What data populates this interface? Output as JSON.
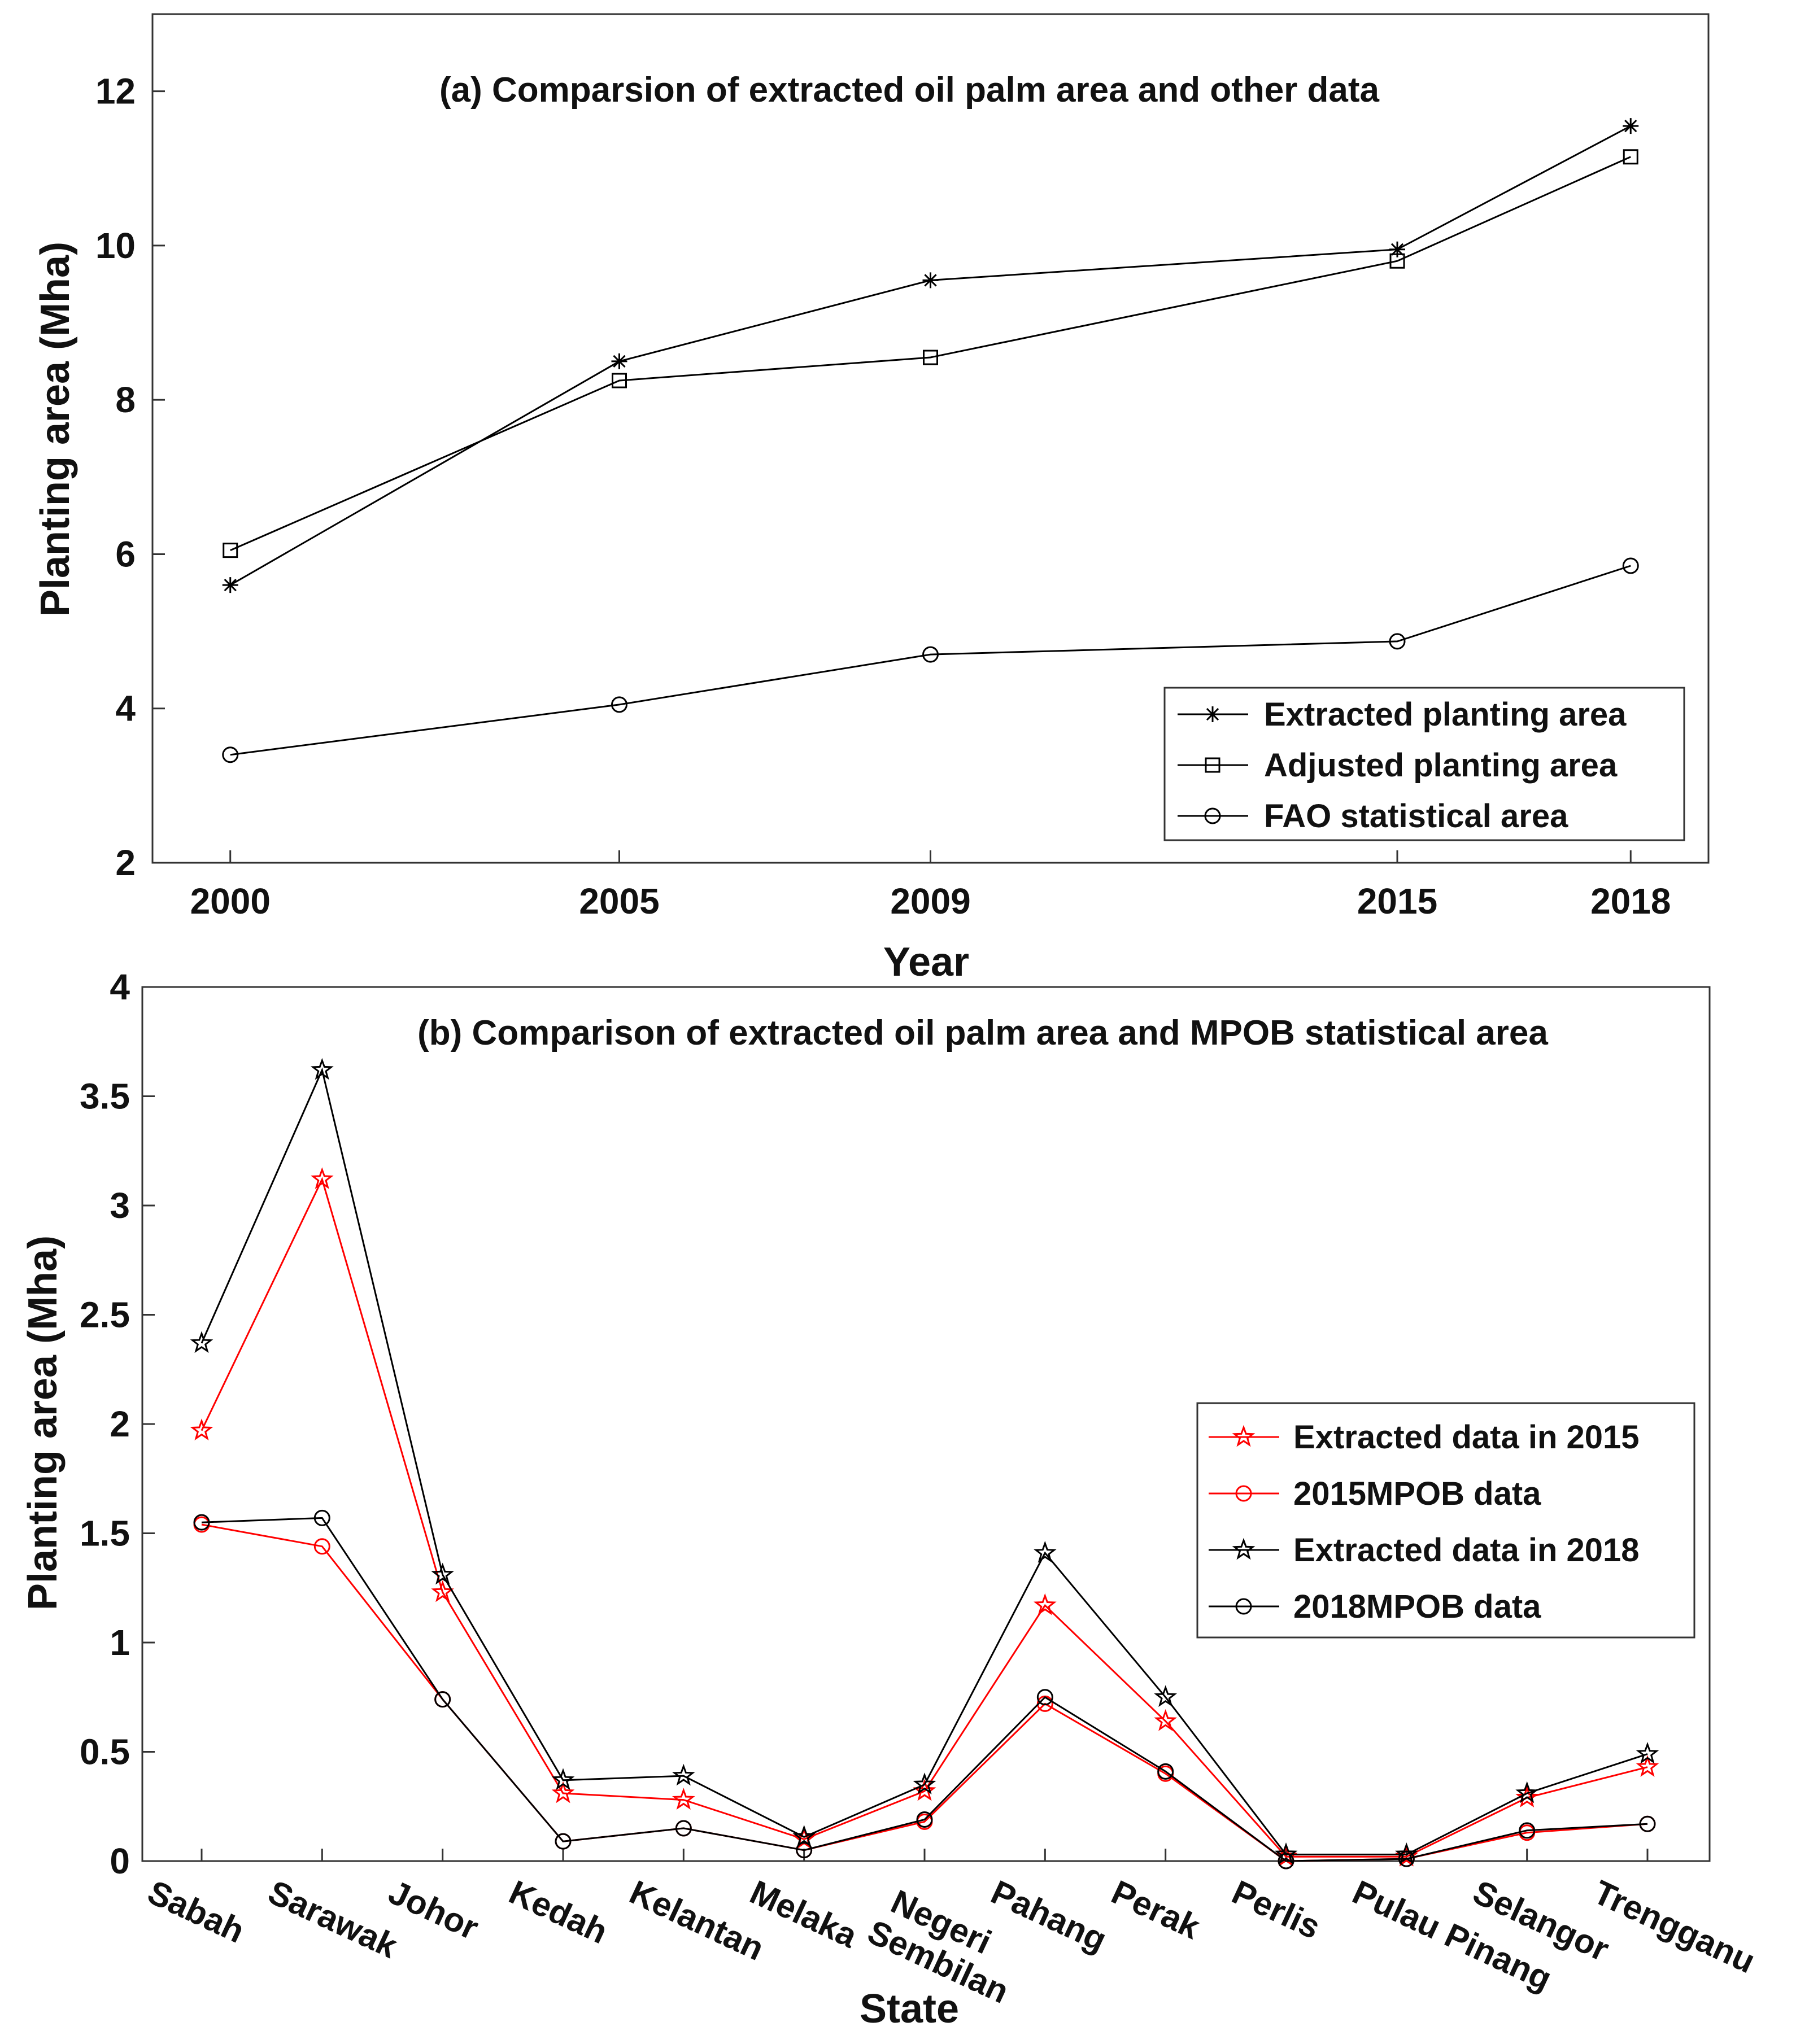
{
  "chart_data": [
    {
      "type": "line",
      "title": "(a) Comparsion of extracted oil palm area and other data",
      "xlabel": "Year",
      "ylabel": "Planting area (Mha)",
      "x": [
        2000,
        2005,
        2009,
        2015,
        2018
      ],
      "xlim": [
        1999,
        2019
      ],
      "ylim": [
        2,
        13
      ],
      "yticks": [
        2,
        4,
        6,
        8,
        10,
        12
      ],
      "legend_position": "bottom-right",
      "series": [
        {
          "name": "Extracted planting area",
          "marker": "asterisk",
          "color": "#000000",
          "values": [
            5.6,
            8.5,
            9.55,
            9.95,
            11.55
          ]
        },
        {
          "name": "Adjusted planting area",
          "marker": "square",
          "color": "#000000",
          "values": [
            6.05,
            8.25,
            8.55,
            9.8,
            11.15
          ]
        },
        {
          "name": "FAO statistical area",
          "marker": "circle",
          "color": "#000000",
          "values": [
            3.4,
            4.05,
            4.7,
            4.87,
            5.85
          ]
        }
      ]
    },
    {
      "type": "line",
      "title": "(b) Comparison of extracted oil palm area and MPOB statistical area",
      "xlabel": "State",
      "ylabel": "Planting area (Mha)",
      "categories": [
        "Sabah",
        "Sarawak",
        "Johor",
        "Kedah",
        "Kelantan",
        "Melaka",
        "Negeri Sembilan",
        "Pahang",
        "Perak",
        "Perlis",
        "Pulau Pinang",
        "Selangor",
        "Trengganu"
      ],
      "ylim": [
        0,
        4
      ],
      "yticks": [
        0,
        0.5,
        1,
        1.5,
        2,
        2.5,
        3,
        3.5,
        4
      ],
      "legend_position": "right",
      "series": [
        {
          "name": "Extracted data in 2015",
          "marker": "star",
          "color": "#ff0000",
          "values": [
            1.97,
            3.12,
            1.23,
            0.31,
            0.28,
            0.1,
            0.32,
            1.17,
            0.64,
            0.02,
            0.02,
            0.29,
            0.43
          ]
        },
        {
          "name": "2015MPOB data",
          "marker": "circle",
          "color": "#ff0000",
          "values": [
            1.54,
            1.44,
            0.74,
            0.09,
            0.15,
            0.05,
            0.18,
            0.72,
            0.4,
            0.0,
            0.01,
            0.13,
            0.17
          ]
        },
        {
          "name": "Extracted data in 2018",
          "marker": "star",
          "color": "#000000",
          "values": [
            2.37,
            3.62,
            1.31,
            0.37,
            0.39,
            0.11,
            0.35,
            1.41,
            0.75,
            0.03,
            0.03,
            0.31,
            0.49
          ]
        },
        {
          "name": "2018MPOB data",
          "marker": "circle",
          "color": "#000000",
          "values": [
            1.55,
            1.57,
            0.74,
            0.09,
            0.15,
            0.05,
            0.19,
            0.75,
            0.41,
            0.0,
            0.01,
            0.14,
            0.17
          ]
        }
      ]
    }
  ]
}
